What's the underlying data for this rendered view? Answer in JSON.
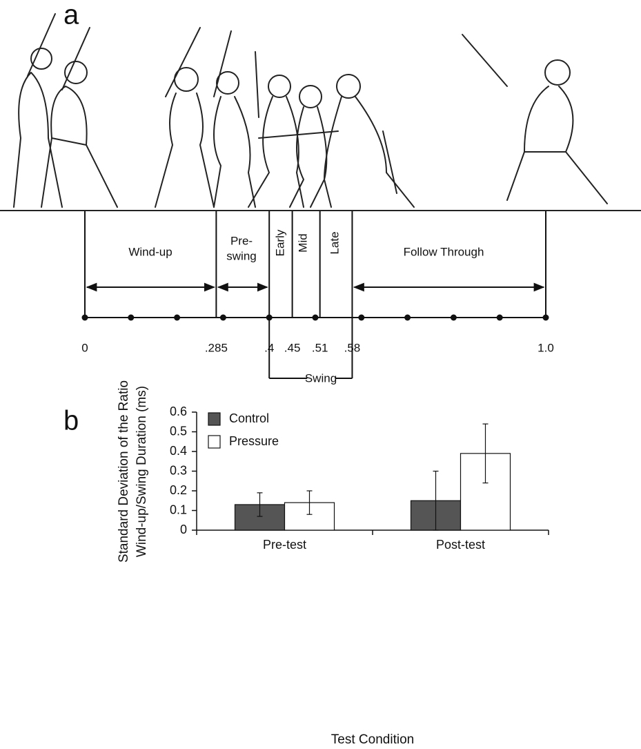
{
  "panel_a": {
    "label": "a",
    "ticks": [
      0,
      {
        "value": 0.285,
        "label": ".285"
      },
      {
        "value": 0.4,
        "label": ".4"
      },
      {
        "value": 0.45,
        "label": ".45"
      },
      {
        "value": 0.51,
        "label": ".51"
      },
      {
        "value": 0.58,
        "label": ".58"
      },
      {
        "value": 1.0,
        "label": "1.0"
      }
    ],
    "phases": {
      "windup": "Wind-up",
      "preswing": [
        "Pre-",
        "swing"
      ],
      "early": "Early",
      "mid": "Mid",
      "late": "Late",
      "follow_through": "Follow Through",
      "swing": "Swing"
    }
  },
  "chart_data": {
    "type": "bar",
    "panel_label": "b",
    "y_label": [
      "Standard Deviation of the Ratio",
      "Wind-up/Swing Duration (ms)"
    ],
    "x_label": "Test Condition",
    "categories": [
      "Pre-test",
      "Post-test"
    ],
    "series": [
      {
        "name": "Control",
        "color": "#555555",
        "values": [
          0.13,
          0.15
        ],
        "errors": [
          0.06,
          0.15
        ]
      },
      {
        "name": "Pressure",
        "color": "#ffffff",
        "values": [
          0.14,
          0.39
        ],
        "errors": [
          0.06,
          0.15
        ]
      }
    ],
    "ylim": [
      0,
      0.6
    ],
    "yticks": [
      0,
      0.1,
      0.2,
      0.3,
      0.4,
      0.5,
      0.6
    ],
    "legend": "upper left",
    "grid": false
  }
}
